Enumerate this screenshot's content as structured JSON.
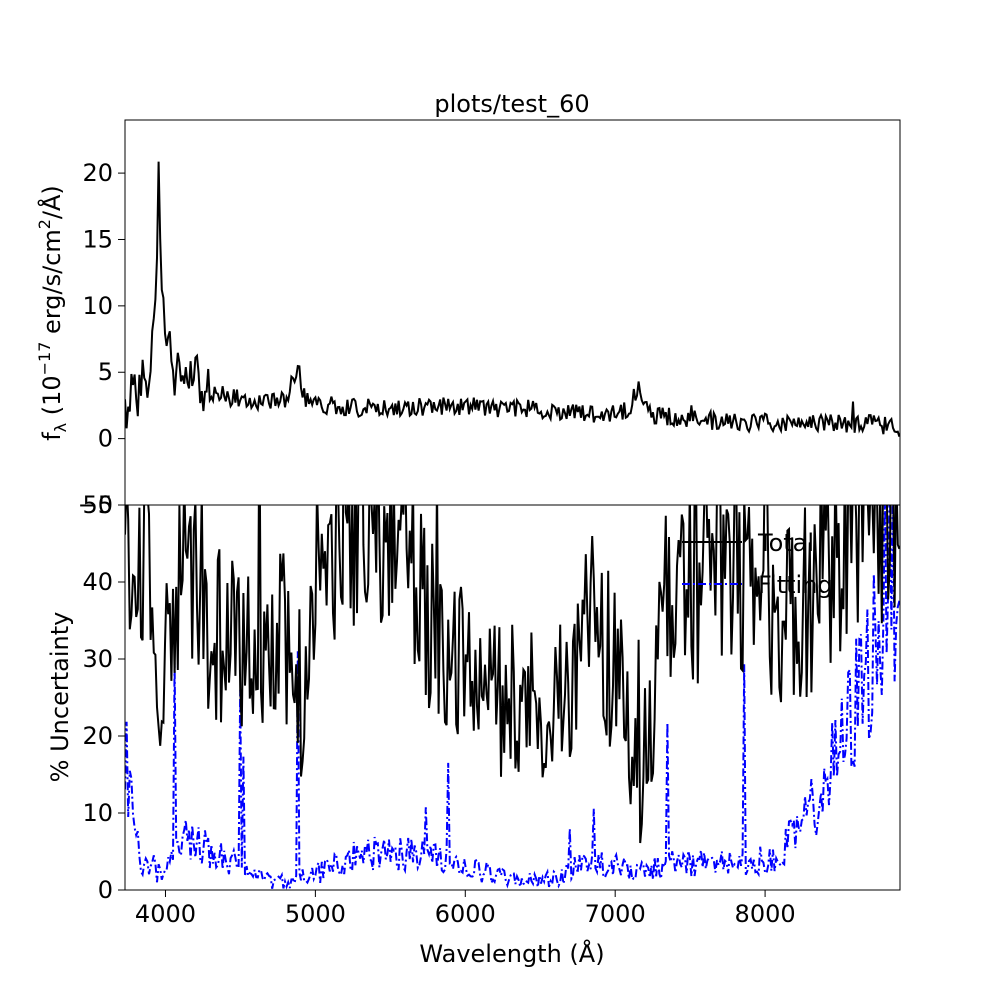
{
  "title": "plots/test_60",
  "chart_data": [
    {
      "type": "line",
      "name": "flux-panel",
      "title": "plots/test_60",
      "xlabel": "",
      "ylabel_main": "f",
      "ylabel_sub": "λ",
      "ylabel_mid": " (10",
      "ylabel_exp": "−17",
      "ylabel_unit": " erg/s/cm",
      "ylabel_sq": "2",
      "ylabel_end": "/Å)",
      "xlim": [
        3730,
        8900
      ],
      "ylim": [
        -5,
        24
      ],
      "yticks": [
        "−5",
        "0",
        "5",
        "10",
        "15",
        "20"
      ],
      "ytick_values": [
        -5,
        0,
        5,
        10,
        15,
        20
      ],
      "grid": false,
      "color": "#000000",
      "x": [
        3730,
        3760,
        3790,
        3820,
        3850,
        3880,
        3910,
        3935,
        3955,
        3970,
        3990,
        4020,
        4060,
        4100,
        4150,
        4200,
        4250,
        4300,
        4400,
        4500,
        4600,
        4700,
        4800,
        4870,
        4890,
        4920,
        5000,
        5100,
        5200,
        5300,
        5400,
        5500,
        5600,
        5700,
        5800,
        5900,
        6000,
        6100,
        6200,
        6300,
        6400,
        6500,
        6600,
        6700,
        6800,
        6900,
        7000,
        7100,
        7140,
        7160,
        7190,
        7250,
        7300,
        7400,
        7500,
        7600,
        7700,
        7800,
        7900,
        8000,
        8100,
        8200,
        8300,
        8400,
        8500,
        8600,
        8700,
        8800,
        8900
      ],
      "y": [
        1.5,
        3.5,
        6.0,
        3.0,
        5.0,
        4.0,
        6.5,
        9.0,
        22.0,
        13.0,
        8.0,
        7.0,
        5.0,
        4.5,
        4.0,
        4.2,
        3.8,
        3.5,
        3.2,
        3.0,
        2.9,
        2.8,
        3.0,
        4.8,
        5.5,
        3.2,
        2.6,
        2.5,
        2.4,
        2.3,
        2.3,
        2.4,
        2.3,
        2.4,
        2.5,
        2.5,
        2.4,
        2.4,
        2.3,
        2.3,
        2.3,
        2.2,
        2.1,
        2.0,
        1.9,
        1.9,
        1.9,
        2.2,
        3.6,
        4.3,
        2.8,
        1.8,
        1.7,
        1.6,
        1.5,
        1.4,
        1.3,
        1.3,
        1.2,
        1.2,
        1.2,
        1.2,
        1.2,
        1.2,
        1.2,
        1.1,
        1.1,
        1.0,
        0.8
      ]
    },
    {
      "type": "line",
      "name": "uncertainty-panel",
      "xlabel": "Wavelength (Å)",
      "ylabel": "% Uncertainty",
      "xlim": [
        3730,
        8900
      ],
      "ylim": [
        0,
        50
      ],
      "xticks": [
        "4000",
        "5000",
        "6000",
        "7000",
        "8000"
      ],
      "xtick_values": [
        4000,
        5000,
        6000,
        7000,
        8000
      ],
      "yticks": [
        "0",
        "10",
        "20",
        "30",
        "40",
        "50"
      ],
      "ytick_values": [
        0,
        10,
        20,
        30,
        40,
        50
      ],
      "grid": false,
      "legend_placement": "upper-right",
      "series": [
        {
          "name": "Total",
          "color": "#000000",
          "x": [
            3730,
            3760,
            3800,
            3850,
            3900,
            3940,
            3960,
            3980,
            4020,
            4080,
            4150,
            4200,
            4250,
            4300,
            4400,
            4500,
            4600,
            4700,
            4800,
            4850,
            4880,
            4900,
            4950,
            5000,
            5100,
            5200,
            5300,
            5400,
            5500,
            5600,
            5700,
            5800,
            5900,
            6000,
            6100,
            6200,
            6300,
            6400,
            6500,
            6600,
            6700,
            6800,
            6850,
            6900,
            7000,
            7100,
            7150,
            7200,
            7300,
            7400,
            7500,
            7600,
            7700,
            7800,
            7900,
            8000,
            8100,
            8200,
            8300,
            8400,
            8500,
            8600,
            8700,
            8800,
            8900
          ],
          "y": [
            48,
            45,
            42,
            40,
            38,
            30,
            14,
            22,
            38,
            42,
            40,
            35,
            32,
            32,
            33,
            32,
            32,
            34,
            34,
            26,
            18,
            14,
            28,
            40,
            45,
            45,
            46,
            47,
            48,
            45,
            38,
            32,
            30,
            28,
            26,
            25,
            25,
            25,
            24,
            24,
            28,
            32,
            36,
            33,
            28,
            20,
            12,
            18,
            32,
            38,
            40,
            40,
            40,
            42,
            40,
            38,
            36,
            36,
            38,
            42,
            45,
            47,
            48,
            49,
            48
          ]
        },
        {
          "name": "Fitting",
          "color": "#0000ff",
          "x": [
            3730,
            3760,
            3800,
            3840,
            3880,
            3920,
            3960,
            4000,
            4050,
            4100,
            4150,
            4200,
            4300,
            4400,
            4500,
            4600,
            4700,
            4800,
            4900,
            5000,
            5100,
            5200,
            5300,
            5400,
            5500,
            5600,
            5700,
            5800,
            5900,
            6000,
            6100,
            6200,
            6300,
            6400,
            6500,
            6600,
            6700,
            6800,
            6900,
            7000,
            7100,
            7200,
            7300,
            7400,
            7500,
            7600,
            7700,
            7800,
            7900,
            8000,
            8100,
            8200,
            8300,
            8400,
            8500,
            8600,
            8700,
            8800,
            8900
          ],
          "y": [
            20,
            12,
            8,
            4,
            3,
            3,
            2,
            3,
            4,
            6,
            7,
            6,
            5,
            4,
            3,
            2,
            1,
            1.2,
            1.5,
            2,
            3,
            4,
            4.5,
            4.8,
            5,
            4.8,
            4.5,
            4,
            3.5,
            3,
            2.5,
            2,
            1.5,
            1.2,
            1.2,
            1.5,
            2.5,
            3.5,
            3.5,
            3,
            2.5,
            2.5,
            3,
            3.5,
            3.5,
            3.5,
            3.5,
            3.5,
            3.5,
            4,
            5,
            7,
            10,
            14,
            18,
            24,
            30,
            38,
            45
          ]
        }
      ]
    }
  ]
}
